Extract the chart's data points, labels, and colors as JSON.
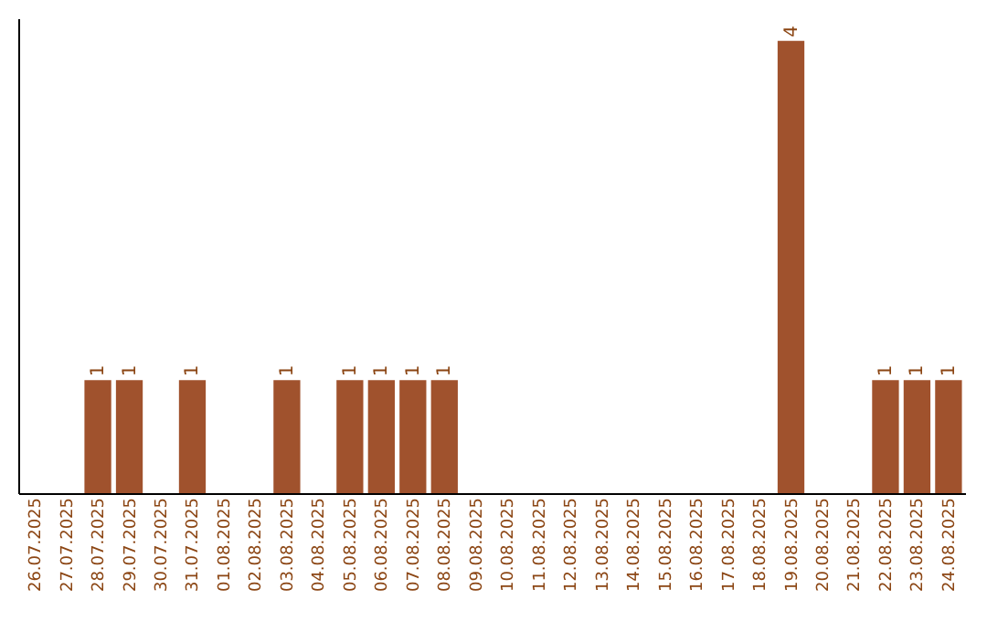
{
  "chart_data": {
    "type": "bar",
    "categories": [
      "26.07.2025",
      "27.07.2025",
      "28.07.2025",
      "29.07.2025",
      "30.07.2025",
      "31.07.2025",
      "01.08.2025",
      "02.08.2025",
      "03.08.2025",
      "04.08.2025",
      "05.08.2025",
      "06.08.2025",
      "07.08.2025",
      "08.08.2025",
      "09.08.2025",
      "10.08.2025",
      "11.08.2025",
      "12.08.2025",
      "13.08.2025",
      "14.08.2025",
      "15.08.2025",
      "16.08.2025",
      "17.08.2025",
      "18.08.2025",
      "19.08.2025",
      "20.08.2025",
      "21.08.2025",
      "22.08.2025",
      "23.08.2025",
      "24.08.2025"
    ],
    "values": [
      0,
      0,
      1,
      1,
      0,
      1,
      0,
      0,
      1,
      0,
      1,
      1,
      1,
      1,
      0,
      0,
      0,
      0,
      0,
      0,
      0,
      0,
      0,
      0,
      4,
      0,
      0,
      1,
      1,
      1
    ],
    "value_labels": [
      null,
      null,
      "1",
      "1",
      null,
      "1",
      null,
      null,
      "1",
      null,
      "1",
      "1",
      "1",
      "1",
      null,
      null,
      null,
      null,
      null,
      null,
      null,
      null,
      null,
      null,
      "4",
      null,
      null,
      "1",
      "1",
      "1"
    ],
    "color": "#a0522d",
    "ylim": [
      0,
      4.2
    ],
    "tick_labels": "x"
  }
}
